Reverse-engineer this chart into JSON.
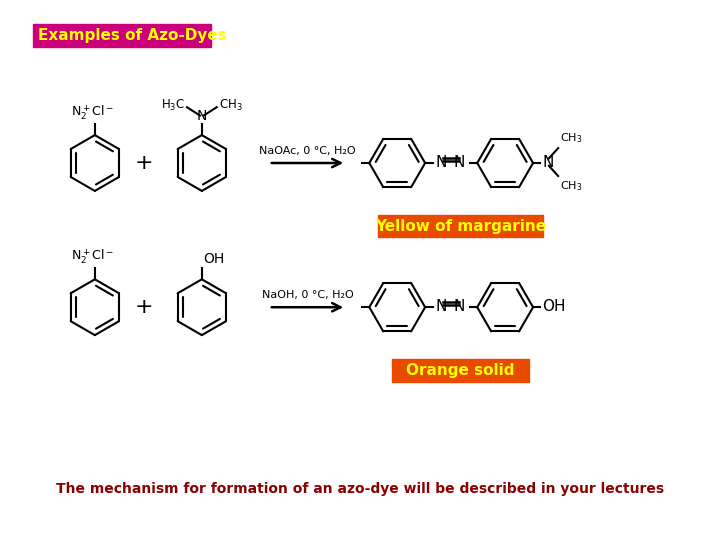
{
  "title_text": "Examples of Azo-Dyes",
  "title_bg": "#CC007A",
  "title_fg": "#FFFF00",
  "label1": "Yellow of margarine",
  "label1_bg": "#E84A00",
  "label1_fg": "#FFFF00",
  "label2": "Orange solid",
  "label2_bg": "#E84A00",
  "label2_fg": "#FFFF00",
  "bottom_text": "The mechanism for formation of an azo-dye will be described in your lectures",
  "bottom_fg": "#8B0000",
  "bg_color": "#FFFFFF",
  "reaction1_conditions": "NaOAc, 0 °C, H₂O",
  "reaction2_conditions": "NaOH, 0 °C, H₂O",
  "line_color": "#000000",
  "lw": 1.5
}
